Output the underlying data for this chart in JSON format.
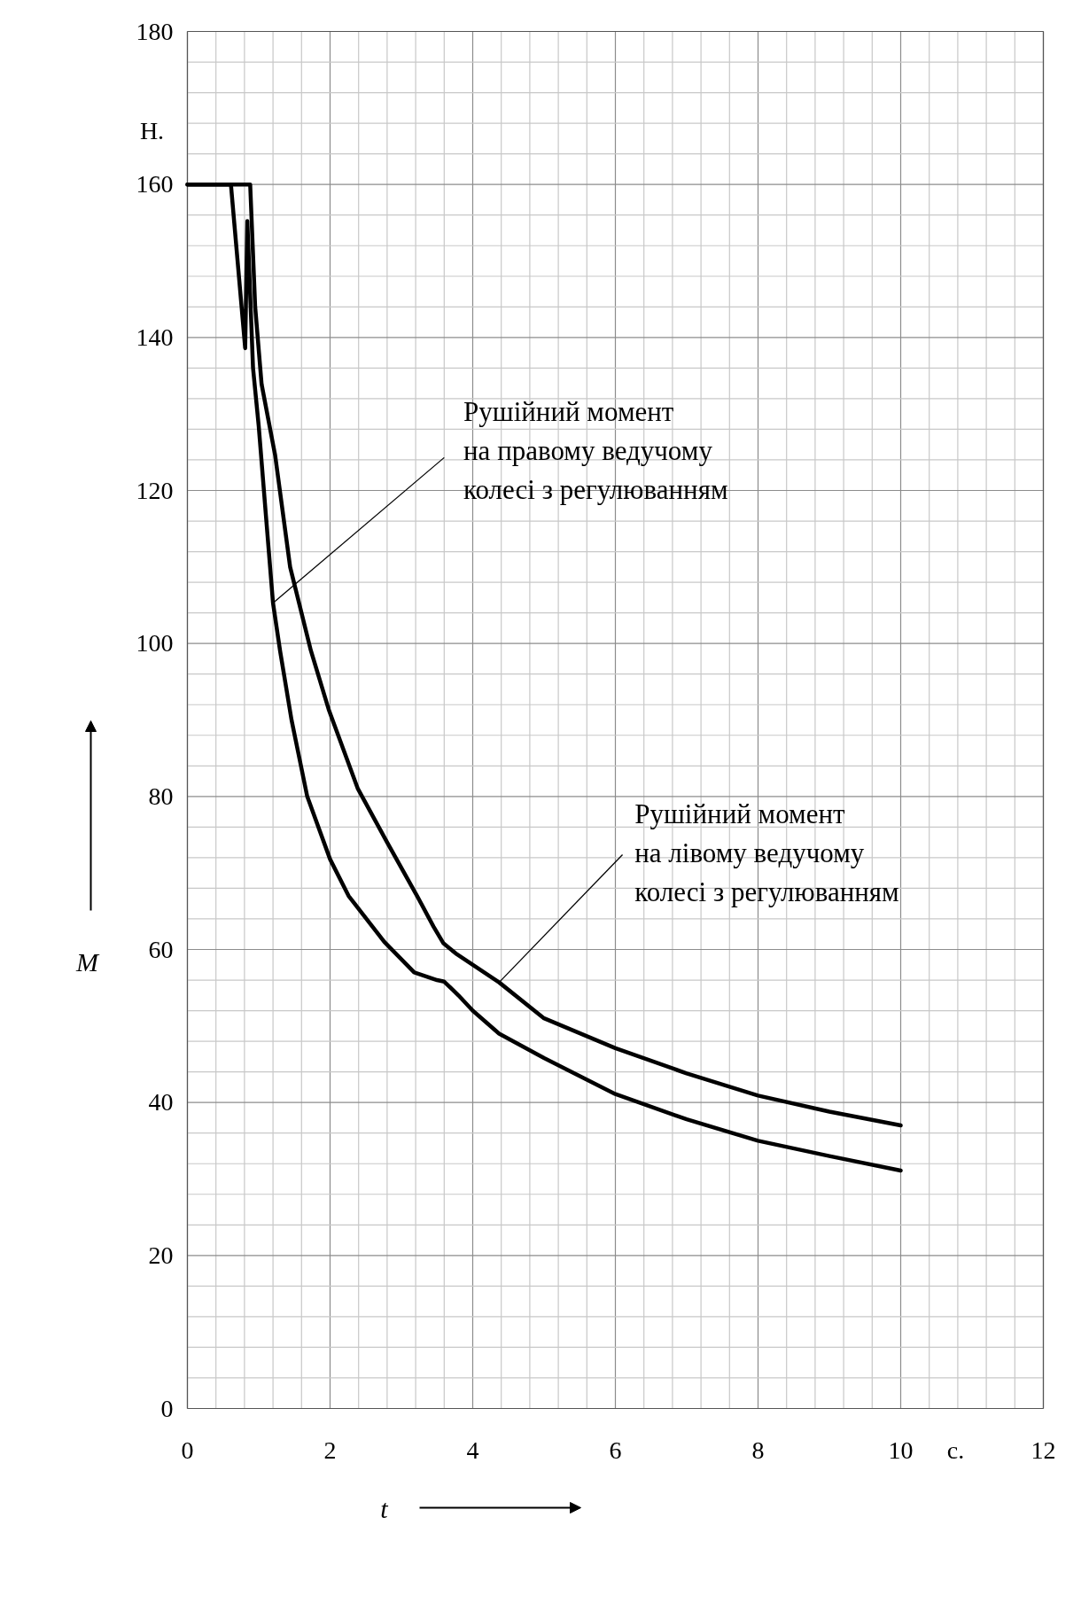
{
  "chart_data": {
    "type": "line",
    "xlabel": "t",
    "ylabel": "M",
    "xlim": [
      0,
      12
    ],
    "xticks": [
      0,
      2,
      4,
      6,
      8,
      10,
      12
    ],
    "ylim": [
      0,
      180
    ],
    "yticks": [
      0,
      20,
      40,
      60,
      80,
      100,
      120,
      140,
      160,
      180
    ],
    "grid": true,
    "marker": "none",
    "line_style": "solid",
    "annotations": [
      "Н.",
      "с.",
      {
        "text": "Рушійний момент\nна правому ведучому\nколесі з регулюванням",
        "x": 1.2,
        "y": 105.3
      },
      {
        "text": "Рушійний момент\nна лівому ведучому\nколесі з регулюванням",
        "x": 4.37,
        "y": 55.7
      }
    ],
    "series": [
      {
        "color": "#000000",
        "x": [
          0,
          0.88,
          0.95,
          1.04,
          1.23,
          1.44,
          1.73,
          1.98,
          2.39,
          2.8,
          3.22,
          3.45,
          3.59,
          3.76,
          4.37,
          5.0,
          6.0,
          7.0,
          8.0,
          9.0,
          10.0
        ],
        "values": [
          160,
          160,
          144,
          133.9,
          124.6,
          110,
          99.1,
          91.4,
          81,
          74,
          67,
          63,
          60.8,
          59.5,
          55.7,
          51,
          47.1,
          43.8,
          40.9,
          38.8,
          37
        ]
      },
      {
        "color": "#000000",
        "x": [
          0,
          0.61,
          0.81,
          0.84,
          0.92,
          1.0,
          1.1,
          1.2,
          1.3,
          1.46,
          1.68,
          2.0,
          2.26,
          2.76,
          3.18,
          3.5,
          3.6,
          3.8,
          4.0,
          4.37,
          5.0,
          6.0,
          7.0,
          8.0,
          9.0,
          10.0
        ],
        "values": [
          160,
          160,
          138.6,
          155.2,
          136,
          128.4,
          116.8,
          105.3,
          99,
          90,
          80,
          71.8,
          67,
          61,
          57,
          56,
          55.8,
          54,
          52,
          49,
          45.8,
          41.1,
          37.8,
          35,
          33,
          31.1
        ]
      }
    ]
  }
}
